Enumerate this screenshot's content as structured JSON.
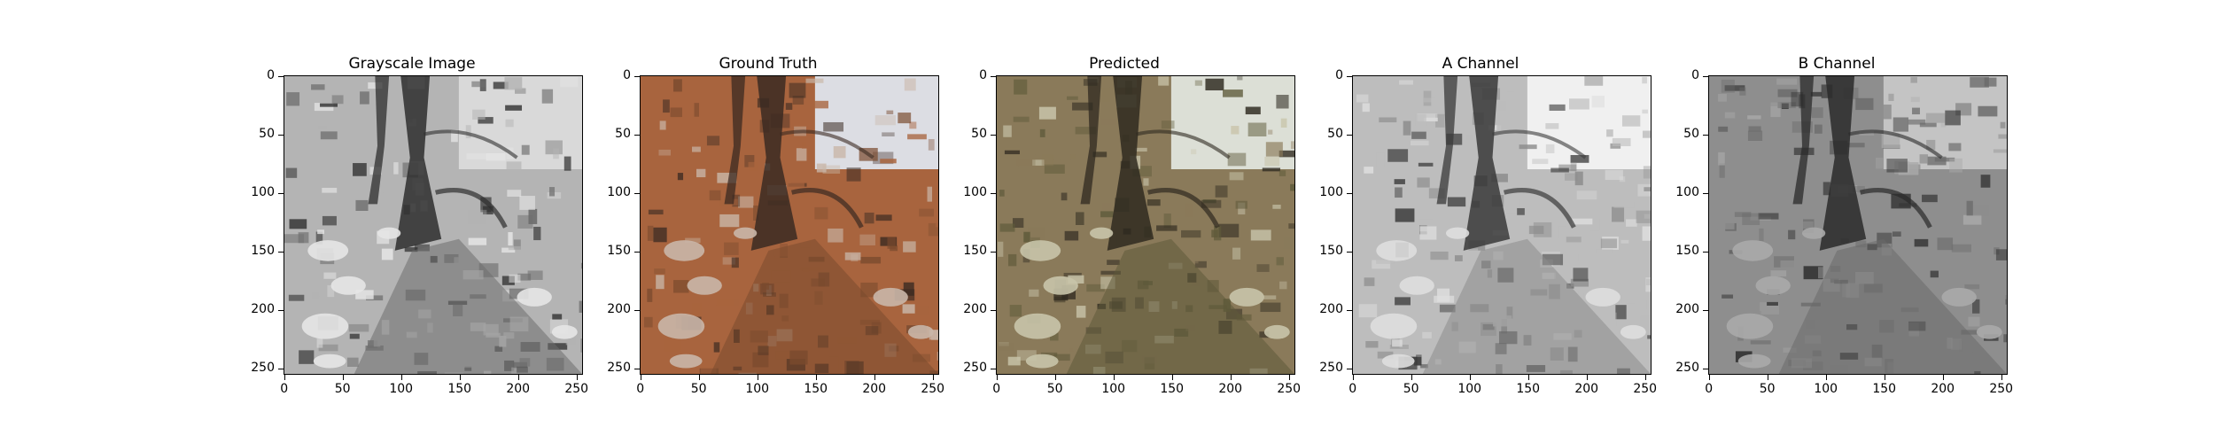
{
  "panels": [
    {
      "title": "Grayscale Image",
      "palette": [
        "#2e2e2e",
        "#6e6e6e",
        "#b4b4b4",
        "#e6e6e6",
        "#d9d9d9"
      ]
    },
    {
      "title": "Ground Truth",
      "palette": [
        "#3b2a22",
        "#7a4a2e",
        "#a8643e",
        "#c9b6a8",
        "#dcdde3"
      ]
    },
    {
      "title": "Predicted",
      "palette": [
        "#2f2a20",
        "#5e5a3a",
        "#8a7a5a",
        "#c8c4aa",
        "#dcdfd6"
      ]
    },
    {
      "title": "A Channel",
      "palette": [
        "#3a3a3a",
        "#8c8c8c",
        "#bdbdbd",
        "#dedede",
        "#f0f0f0"
      ]
    },
    {
      "title": "B Channel",
      "palette": [
        "#2a2a2a",
        "#6a6a6a",
        "#8e8e8e",
        "#aaaaaa",
        "#c4c4c4"
      ]
    }
  ],
  "y_ticks": [
    "0",
    "50",
    "100",
    "150",
    "200",
    "250"
  ],
  "x_ticks": [
    "0",
    "50",
    "100",
    "150",
    "200",
    "250"
  ]
}
